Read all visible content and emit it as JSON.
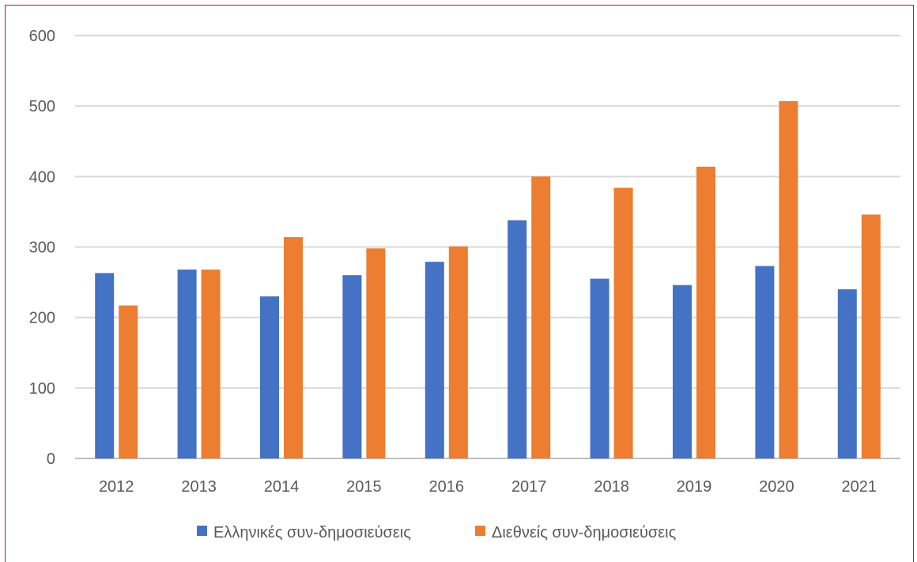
{
  "chart_data": {
    "type": "bar",
    "categories": [
      "2012",
      "2013",
      "2014",
      "2015",
      "2016",
      "2017",
      "2018",
      "2019",
      "2020",
      "2021"
    ],
    "series": [
      {
        "name": "Ελληνικές συν-δημοσιεύσεις",
        "color": "#4472C4",
        "values": [
          263,
          268,
          230,
          260,
          279,
          338,
          255,
          246,
          273,
          240
        ]
      },
      {
        "name": "Διεθνείς συν-δημοσιεύσεις",
        "color": "#ED7D31",
        "values": [
          217,
          268,
          314,
          298,
          301,
          400,
          384,
          414,
          507,
          346
        ]
      }
    ],
    "yticks": [
      "0",
      "100",
      "200",
      "300",
      "400",
      "500",
      "600"
    ],
    "ylim": [
      0,
      600
    ],
    "grid": true,
    "legend_position": "bottom"
  }
}
